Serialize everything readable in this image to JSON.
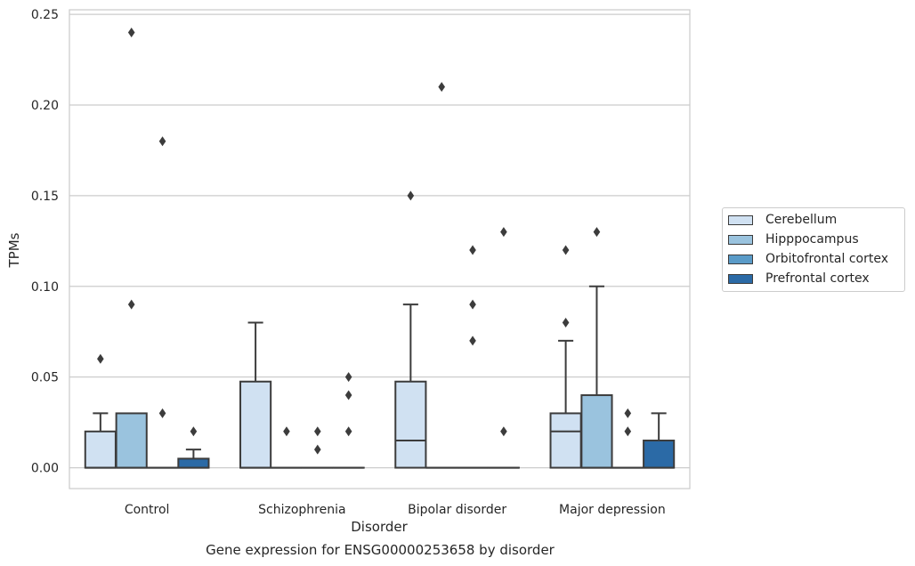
{
  "chart_data": {
    "type": "box",
    "title": "Gene expression for ENSG00000253658 by disorder",
    "xlabel": "Disorder",
    "ylabel": "TPMs",
    "ylim": [
      -0.0115,
      0.2525
    ],
    "yticks": [
      0.0,
      0.05,
      0.1,
      0.15,
      0.2,
      0.25
    ],
    "ytick_labels": [
      "0.00",
      "0.05",
      "0.10",
      "0.15",
      "0.20",
      "0.25"
    ],
    "grid": "horizontal",
    "legend_position": "outside-right",
    "categories": [
      "Control",
      "Schizophrenia",
      "Bipolar disorder",
      "Major depression"
    ],
    "series": [
      {
        "name": "Cerebellum",
        "color": "#d0e1f2",
        "boxes": [
          {
            "min": 0.0,
            "q1": 0.0,
            "median": 0.0,
            "q3": 0.02,
            "max": 0.03,
            "outliers": [
              0.06
            ]
          },
          {
            "min": 0.0,
            "q1": 0.0,
            "median": 0.0,
            "q3": 0.0475,
            "max": 0.08,
            "outliers": []
          },
          {
            "min": 0.0,
            "q1": 0.0,
            "median": 0.015,
            "q3": 0.0475,
            "max": 0.09,
            "outliers": [
              0.15
            ]
          },
          {
            "min": 0.0,
            "q1": 0.0,
            "median": 0.02,
            "q3": 0.03,
            "max": 0.07,
            "outliers": [
              0.08,
              0.12
            ]
          }
        ]
      },
      {
        "name": "Hipppocampus",
        "color": "#9ac3de",
        "boxes": [
          {
            "min": 0.0,
            "q1": 0.0,
            "median": 0.0,
            "q3": 0.03,
            "max": 0.03,
            "outliers": [
              0.09,
              0.24
            ]
          },
          {
            "min": 0.0,
            "q1": 0.0,
            "median": 0.0,
            "q3": 0.0,
            "max": 0.0,
            "outliers": [
              0.02
            ]
          },
          {
            "min": 0.0,
            "q1": 0.0,
            "median": 0.0,
            "q3": 0.0,
            "max": 0.0,
            "outliers": [
              0.21
            ]
          },
          {
            "min": 0.0,
            "q1": 0.0,
            "median": 0.0,
            "q3": 0.04,
            "max": 0.1,
            "outliers": [
              0.13
            ]
          }
        ]
      },
      {
        "name": "Orbitofrontal cortex",
        "color": "#5a9bc8",
        "boxes": [
          {
            "min": 0.0,
            "q1": 0.0,
            "median": 0.0,
            "q3": 0.0,
            "max": 0.0,
            "outliers": [
              0.03,
              0.18
            ]
          },
          {
            "min": 0.0,
            "q1": 0.0,
            "median": 0.0,
            "q3": 0.0,
            "max": 0.0,
            "outliers": [
              0.01,
              0.02
            ]
          },
          {
            "min": 0.0,
            "q1": 0.0,
            "median": 0.0,
            "q3": 0.0,
            "max": 0.0,
            "outliers": [
              0.07,
              0.09,
              0.12
            ]
          },
          {
            "min": 0.0,
            "q1": 0.0,
            "median": 0.0,
            "q3": 0.0,
            "max": 0.0,
            "outliers": [
              0.02,
              0.03
            ]
          }
        ]
      },
      {
        "name": "Prefrontal cortex",
        "color": "#2b6aa6",
        "boxes": [
          {
            "min": 0.0,
            "q1": 0.0,
            "median": 0.0,
            "q3": 0.005,
            "max": 0.01,
            "outliers": [
              0.02
            ]
          },
          {
            "min": 0.0,
            "q1": 0.0,
            "median": 0.0,
            "q3": 0.0,
            "max": 0.0,
            "outliers": [
              0.02,
              0.04,
              0.05
            ]
          },
          {
            "min": 0.0,
            "q1": 0.0,
            "median": 0.0,
            "q3": 0.0,
            "max": 0.0,
            "outliers": [
              0.02,
              0.13
            ]
          },
          {
            "min": 0.0,
            "q1": 0.0,
            "median": 0.0,
            "q3": 0.015,
            "max": 0.03,
            "outliers": []
          }
        ]
      }
    ]
  }
}
